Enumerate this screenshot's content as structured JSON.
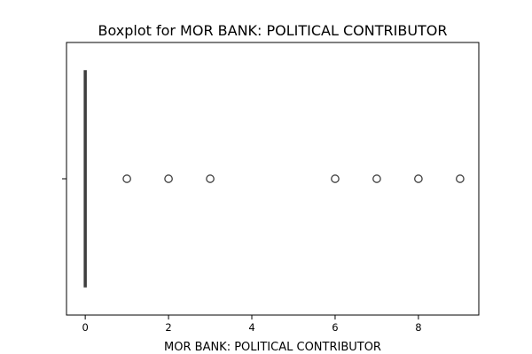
{
  "chart_data": {
    "type": "boxplot",
    "title": "Boxplot for MOR BANK: POLITICAL CONTRIBUTOR",
    "xlabel": "MOR BANK: POLITICAL CONTRIBUTOR",
    "ylabel": "",
    "xlim": [
      -0.45,
      9.45
    ],
    "x_ticks": [
      0,
      2,
      4,
      6,
      8
    ],
    "x_tick_labels": [
      "0",
      "2",
      "4",
      "6",
      "8"
    ],
    "y_ticks": [
      ""
    ],
    "orientation": "horizontal",
    "box": {
      "min": 0,
      "q1": 0,
      "median": 0,
      "q3": 0,
      "max": 0
    },
    "outliers": [
      1,
      2,
      3,
      6,
      7,
      8,
      9
    ],
    "grid": false,
    "colors": {
      "box_line": "#3f3f3f",
      "outlier_edge": "#3f3f3f",
      "axes": "#000000",
      "background": "#ffffff"
    }
  }
}
